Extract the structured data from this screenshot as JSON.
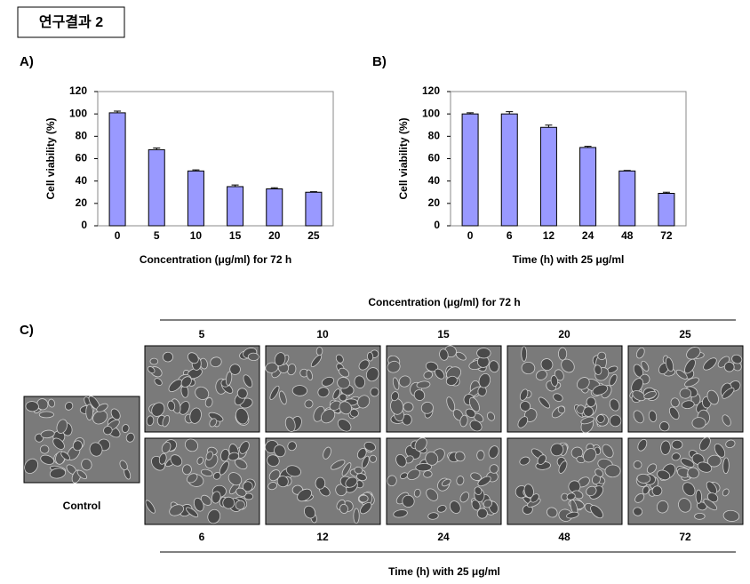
{
  "header": {
    "title": "연구결과 2"
  },
  "chart_data": [
    {
      "type": "bar",
      "panel": "A)",
      "xlabel": "Concentration (μg/ml) for 72 h",
      "ylabel": "Cell viability (%)",
      "categories": [
        "0",
        "5",
        "10",
        "15",
        "20",
        "25"
      ],
      "values": [
        101,
        68,
        49,
        35,
        33,
        30
      ],
      "errors": [
        1.5,
        1.5,
        1,
        1.5,
        1,
        0.5
      ],
      "color": "#9999ff",
      "ylim": [
        0,
        120
      ],
      "yticks": [
        0,
        20,
        40,
        60,
        80,
        100,
        120
      ]
    },
    {
      "type": "bar",
      "panel": "B)",
      "xlabel": "Time (h) with 25 μg/ml",
      "ylabel": "Cell viability (%)",
      "categories": [
        "0",
        "6",
        "12",
        "24",
        "48",
        "72"
      ],
      "values": [
        100,
        100,
        88,
        70,
        49,
        29
      ],
      "errors": [
        1,
        2,
        2,
        1,
        0.5,
        1
      ],
      "color": "#9999ff",
      "ylim": [
        0,
        120
      ],
      "yticks": [
        0,
        20,
        40,
        60,
        80,
        100,
        120
      ]
    }
  ],
  "panel_c": {
    "label": "C)",
    "top_heading": "Concentration (μg/ml) for 72 h",
    "top_labels": [
      "5",
      "10",
      "15",
      "20",
      "25"
    ],
    "bottom_labels": [
      "6",
      "12",
      "24",
      "48",
      "72"
    ],
    "bottom_heading": "Time (h) with 25 μg/ml",
    "control": "Control"
  }
}
